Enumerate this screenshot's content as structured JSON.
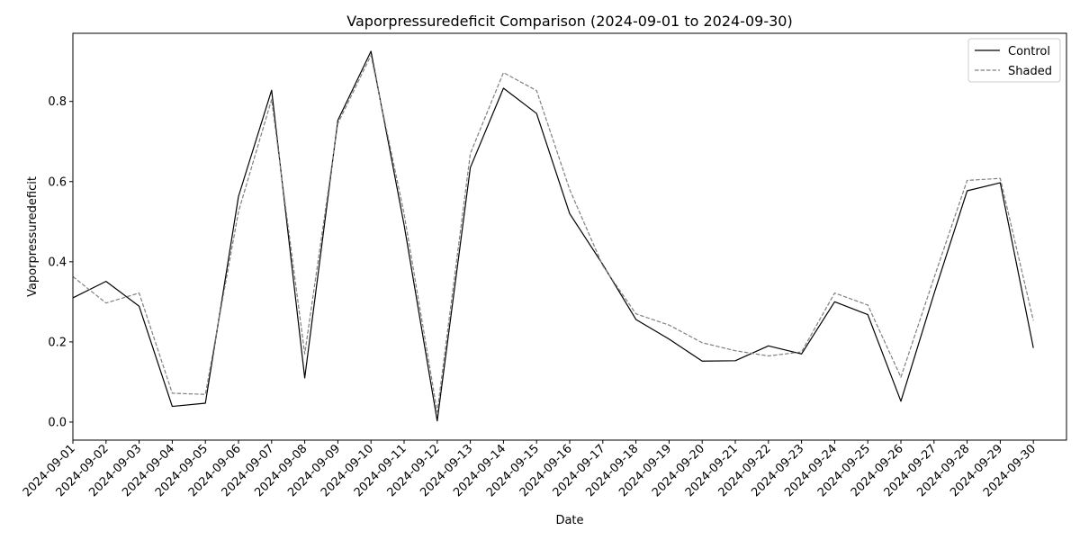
{
  "chart_data": {
    "type": "line",
    "title": "Vaporpressuredeficit Comparison (2024-09-01 to 2024-09-30)",
    "xlabel": "Date",
    "ylabel": "Vaporpressuredeficit",
    "ylim": [
      -0.045,
      0.97
    ],
    "yticks": [
      0.0,
      0.2,
      0.4,
      0.6,
      0.8
    ],
    "ytick_labels": [
      "0.0",
      "0.2",
      "0.4",
      "0.6",
      "0.8"
    ],
    "grid": false,
    "legend_position": "top-right",
    "x": [
      "2024-09-01",
      "2024-09-02",
      "2024-09-03",
      "2024-09-04",
      "2024-09-05",
      "2024-09-06",
      "2024-09-07",
      "2024-09-08",
      "2024-09-09",
      "2024-09-10",
      "2024-09-11",
      "2024-09-12",
      "2024-09-13",
      "2024-09-14",
      "2024-09-15",
      "2024-09-16",
      "2024-09-17",
      "2024-09-18",
      "2024-09-19",
      "2024-09-20",
      "2024-09-21",
      "2024-09-22",
      "2024-09-23",
      "2024-09-24",
      "2024-09-25",
      "2024-09-26",
      "2024-09-27",
      "2024-09-28",
      "2024-09-29",
      "2024-09-30"
    ],
    "series": [
      {
        "name": "Control",
        "color": "#000000",
        "style": "solid",
        "values": [
          0.31,
          0.351,
          0.289,
          0.039,
          0.047,
          0.563,
          0.828,
          0.11,
          0.753,
          0.925,
          0.492,
          0.003,
          0.635,
          0.833,
          0.77,
          0.52,
          0.393,
          0.256,
          0.207,
          0.152,
          0.153,
          0.19,
          0.17,
          0.3,
          0.268,
          0.052,
          0.32,
          0.577,
          0.597,
          0.185
        ]
      },
      {
        "name": "Shaded",
        "color": "#808080",
        "style": "dashed",
        "values": [
          0.363,
          0.297,
          0.322,
          0.072,
          0.069,
          0.525,
          0.805,
          0.17,
          0.745,
          0.915,
          0.52,
          0.025,
          0.67,
          0.872,
          0.827,
          0.58,
          0.39,
          0.27,
          0.242,
          0.198,
          0.178,
          0.165,
          0.175,
          0.322,
          0.292,
          0.112,
          0.36,
          0.603,
          0.608,
          0.253
        ]
      }
    ]
  }
}
